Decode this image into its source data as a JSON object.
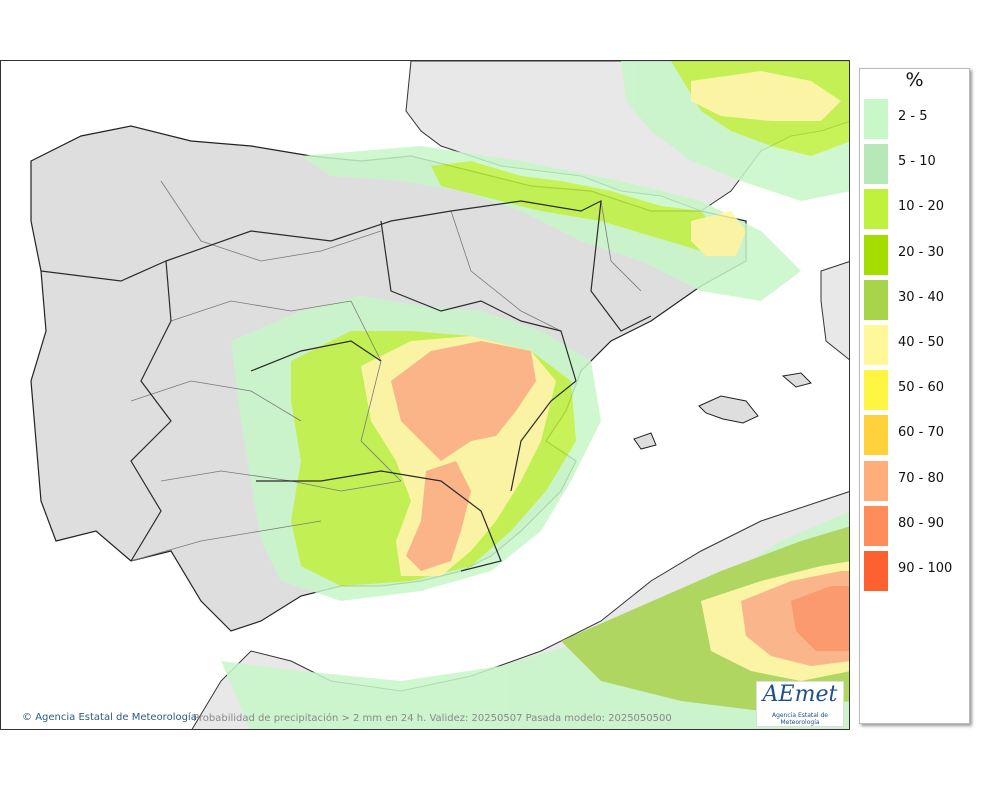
{
  "legend": {
    "title": "%",
    "items": [
      {
        "label": "2 - 5",
        "color": "#c8f7c8"
      },
      {
        "label": "5 - 10",
        "color": "#b6e8b8"
      },
      {
        "label": "10 - 20",
        "color": "#bef23c"
      },
      {
        "label": "20 - 30",
        "color": "#a4de00"
      },
      {
        "label": "30 - 40",
        "color": "#a6d44a"
      },
      {
        "label": "40 - 50",
        "color": "#fff79a"
      },
      {
        "label": "50 - 60",
        "color": "#fff542"
      },
      {
        "label": "60 - 70",
        "color": "#ffd23c"
      },
      {
        "label": "70 - 80",
        "color": "#ffad7a"
      },
      {
        "label": "80 - 90",
        "color": "#ff8c5a"
      },
      {
        "label": "90 - 100",
        "color": "#ff6030"
      }
    ]
  },
  "footer": {
    "credit": "Agencia Estatal de Meteorología",
    "caption": "Probabilidad de precipitación > 2 mm en 24 h. Validez: 20250507 Pasada modelo: 2025050500"
  },
  "logo": {
    "text": "AEmet",
    "subtitle": "Agencia Estatal de Meteorología"
  },
  "colors": {
    "land": "#e6e6e6",
    "sea": "#ffffff",
    "border": "#2b2b2b",
    "region_border": "#7a7a7a"
  }
}
